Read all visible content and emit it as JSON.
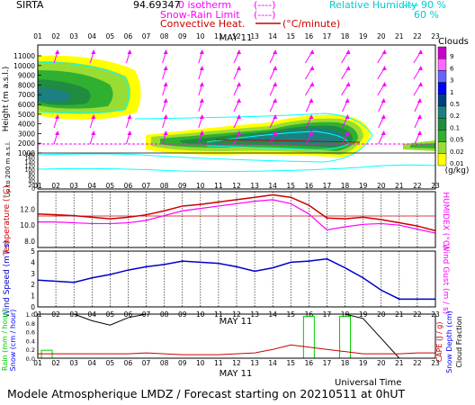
{
  "header": {
    "site": "SIRTA",
    "number": "94.69347",
    "isotherm_label": "0 isotherm",
    "isotherm_symbol": "(----)",
    "snow_rain_label": "Snow-Rain Limit",
    "snow_rain_symbol": "(----)",
    "convective_label": "Convective Heat.",
    "convective_unit": "(°C/minute)",
    "rh_label": "Relative Humidity",
    "rh_90": "90 %",
    "rh_60": "60 %"
  },
  "footer": {
    "model_title": "Modele Atmospherique LMDZ / Forecast starting on 20210511 at 0hUT",
    "time_axis_label": "Universal Time"
  },
  "colors": {
    "temperature": "#cc0000",
    "humidex": "#ff00ff",
    "wind": "#0000cc",
    "rain": "#00cc00",
    "snow": "#0000ff",
    "cape": "#cc0000",
    "cloud_fraction": "#000000",
    "humidity": "#00ffff",
    "convective": "#ff00ff"
  },
  "chart_data": [
    {
      "type": "heatmap",
      "panel": "clouds",
      "date_label": "MAY 11",
      "x_ticks": [
        "01",
        "02",
        "03",
        "04",
        "05",
        "06",
        "07",
        "08",
        "09",
        "10",
        "11",
        "12",
        "13",
        "14",
        "15",
        "16",
        "17",
        "18",
        "19",
        "20",
        "21",
        "22",
        "23"
      ],
      "ylabel": "Height (m a.s.l.)",
      "ylabel_low": "Up to 200 m a.s.l.",
      "y_ticks_upper": [
        "11000",
        "10000",
        "9000",
        "8000",
        "7000",
        "6000",
        "5000",
        "4000",
        "3000",
        "2000",
        "1000"
      ],
      "y_ticks_lower": [
        "180",
        "160",
        "140",
        "120",
        "100",
        "80",
        "60",
        "40",
        "20",
        "0"
      ],
      "legend_title": "Clouds",
      "legend_unit": "(g/kg)",
      "legend_levels": [
        "9",
        "6",
        "3",
        "1",
        "0.5",
        "0.2",
        "0.1",
        "0.05",
        "0.02",
        "0.01"
      ],
      "legend_colors": [
        "#cc00cc",
        "#ff66ff",
        "#6666ff",
        "#0000ff",
        "#004080",
        "#1a8080",
        "#208c40",
        "#30b030",
        "#99dd33",
        "#ffff00"
      ],
      "rh_contour_labels": [
        "90",
        "60"
      ]
    },
    {
      "type": "line",
      "panel": "temperature",
      "x": [
        1,
        2,
        3,
        4,
        5,
        6,
        7,
        8,
        9,
        10,
        11,
        12,
        13,
        14,
        15,
        16,
        17,
        18,
        19,
        20,
        21,
        22,
        23
      ],
      "series": [
        {
          "name": "Temperature",
          "values": [
            11.4,
            11.3,
            11.2,
            11.0,
            10.8,
            11.0,
            11.3,
            11.8,
            12.4,
            12.6,
            12.9,
            13.2,
            13.5,
            13.8,
            13.5,
            12.5,
            10.9,
            10.8,
            11.0,
            10.7,
            10.3,
            9.9,
            9.3
          ]
        },
        {
          "name": "HUMIDEX",
          "values": [
            10.4,
            10.4,
            10.3,
            10.2,
            10.2,
            10.3,
            10.6,
            11.2,
            11.8,
            12.1,
            12.4,
            12.7,
            13.0,
            13.2,
            12.7,
            11.4,
            9.4,
            9.8,
            10.1,
            10.2,
            10.0,
            9.5,
            9.0
          ]
        }
      ],
      "ylabel": "Temperature (°C)",
      "ylabel_right": "HUMIDEX (°C)",
      "y_ticks": [
        "12.0",
        "10.0",
        "8.0"
      ],
      "ylim": [
        7.2,
        14.2
      ]
    },
    {
      "type": "line",
      "panel": "wind",
      "x": [
        1,
        2,
        3,
        4,
        5,
        6,
        7,
        8,
        9,
        10,
        11,
        12,
        13,
        14,
        15,
        16,
        17,
        18,
        19,
        20,
        21,
        22,
        23
      ],
      "series": [
        {
          "name": "Wind Speed",
          "values": [
            2.4,
            2.3,
            2.2,
            2.6,
            2.9,
            3.3,
            3.6,
            3.8,
            4.1,
            4.0,
            3.9,
            3.6,
            3.2,
            3.5,
            4.0,
            4.1,
            4.3,
            3.5,
            2.6,
            1.5,
            0.7,
            0.7,
            0.7
          ]
        }
      ],
      "ylabel": "Wind Speed (m / s)",
      "ylabel_right": "Wind Gust (m / s)",
      "y_ticks": [
        "5",
        "4",
        "3",
        "2",
        "1",
        "0"
      ],
      "ylim": [
        0,
        5
      ]
    },
    {
      "type": "line",
      "panel": "precipitation",
      "date_label": "MAY 11",
      "x": [
        1,
        2,
        3,
        4,
        5,
        6,
        7,
        8,
        9,
        10,
        11,
        12,
        13,
        14,
        15,
        16,
        17,
        18,
        19,
        20,
        21,
        22,
        23
      ],
      "series": [
        {
          "name": "Cloud Fraction",
          "values": [
            1.0,
            1.0,
            1.0,
            0.85,
            0.75,
            0.92,
            1.0,
            1.0,
            1.0,
            1.0,
            1.0,
            1.0,
            1.0,
            1.0,
            1.0,
            1.0,
            1.0,
            1.0,
            0.9,
            0.45,
            0.0,
            0.0,
            0.0
          ]
        },
        {
          "name": "CAPE",
          "values": [
            0.1,
            0.1,
            0.1,
            0.1,
            0.1,
            0.1,
            0.12,
            0.1,
            0.08,
            0.08,
            0.08,
            0.1,
            0.12,
            0.2,
            0.3,
            0.25,
            0.2,
            0.15,
            0.1,
            0.1,
            0.1,
            0.12,
            0.12
          ]
        }
      ],
      "rain_bars": [
        {
          "x": 1.5,
          "value": 0.18
        },
        {
          "x": 16.0,
          "value": 0.95
        },
        {
          "x": 18.0,
          "value": 0.95
        }
      ],
      "ylabel": "Rain (mm / hour)",
      "ylabel_2": "Snow (cm / hour)",
      "ylabel_right": "CAPE (J / g)",
      "ylabel_right_2": "Snow Depth (cm)",
      "ylabel_right_3": "Cloud Fraction",
      "y_ticks": [
        "1.0",
        "0.8",
        "0.6",
        "0.4",
        "0.2",
        "0.0"
      ],
      "ylim": [
        0,
        1
      ]
    }
  ]
}
